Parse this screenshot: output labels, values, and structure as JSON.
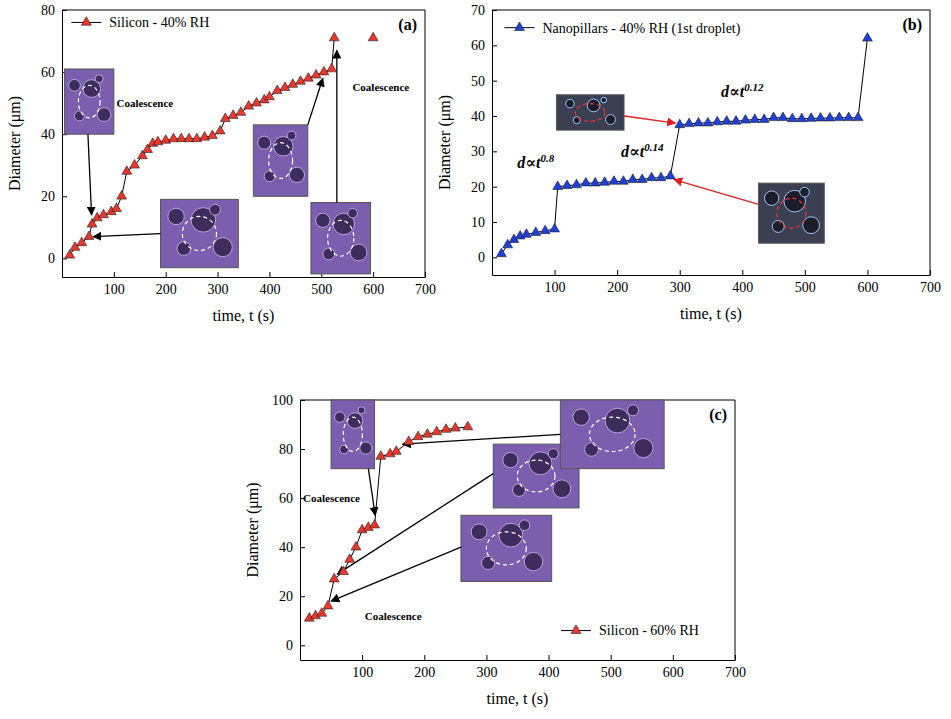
{
  "chart_data": [
    {
      "type": "line",
      "panel_label": "(a)",
      "x_label": "time, t (s)",
      "y_label": "Diameter (μm)",
      "x": [
        15,
        25,
        38,
        52,
        58,
        68,
        80,
        95,
        105,
        115,
        125,
        140,
        155,
        165,
        175,
        185,
        200,
        215,
        230,
        245,
        260,
        275,
        290,
        305,
        315,
        330,
        345,
        360,
        375,
        390,
        400,
        415,
        430,
        445,
        460,
        475,
        490,
        505,
        520,
        525,
        560,
        600
      ],
      "series": [
        {
          "name": "Silicon - 40% RH",
          "color": "#e8372c",
          "marker": "triangle",
          "values": [
            1,
            3.5,
            5,
            7,
            11,
            13,
            14,
            15,
            16,
            20,
            28,
            30,
            33,
            35,
            37,
            37.5,
            38,
            38.5,
            38.5,
            38.5,
            38.5,
            39,
            39.5,
            41,
            45,
            46,
            47,
            49,
            50,
            51,
            52,
            54,
            55,
            56,
            57,
            58,
            59,
            60,
            61,
            71,
            null,
            71
          ]
        }
      ],
      "xlim": [
        0,
        700
      ],
      "xticks": [
        100,
        200,
        300,
        400,
        500,
        600,
        700
      ],
      "ylim": [
        -6,
        80
      ],
      "yticks": [
        0,
        20,
        40,
        60,
        80
      ],
      "legend": "upper left",
      "annotations": [
        {
          "text": "Coalescence"
        },
        {
          "text": "Coalescence"
        }
      ]
    },
    {
      "type": "line",
      "panel_label": "(b)",
      "x_label": "time, t (s)",
      "y_label": "Diameter (μm)",
      "x": [
        15,
        25,
        35,
        45,
        55,
        70,
        85,
        100,
        105,
        120,
        135,
        150,
        165,
        180,
        195,
        210,
        225,
        240,
        255,
        270,
        285,
        300,
        315,
        330,
        345,
        360,
        375,
        390,
        405,
        420,
        435,
        450,
        465,
        480,
        495,
        510,
        525,
        540,
        555,
        570,
        585,
        600
      ],
      "series": [
        {
          "name": "Nanopillars - 40% RH (1st droplet)",
          "color": "#1e3fd8",
          "marker": "triangle",
          "values": [
            1,
            3.5,
            5,
            6,
            6.5,
            7,
            7.5,
            8,
            20,
            20.3,
            20.5,
            21,
            21,
            21.2,
            21.5,
            21.5,
            22,
            22,
            22.5,
            22.5,
            23,
            37.5,
            37.8,
            38,
            38,
            38.3,
            38.5,
            38.5,
            38.8,
            39,
            39,
            39.5,
            39.5,
            39.2,
            39.2,
            39.3,
            39.4,
            39.4,
            39.5,
            39.5,
            39.5,
            62
          ]
        }
      ],
      "xlim": [
        0,
        700
      ],
      "xticks": [
        100,
        200,
        300,
        400,
        500,
        600,
        700
      ],
      "ylim": [
        -5,
        70
      ],
      "yticks": [
        0,
        10,
        20,
        30,
        40,
        50,
        60,
        70
      ],
      "legend": "upper left",
      "annotations": [
        {
          "text": "d∝t",
          "superscript": "0.8"
        },
        {
          "text": "d∝t",
          "superscript": "0.14"
        },
        {
          "text": "d∝t",
          "superscript": "0.12"
        }
      ]
    },
    {
      "type": "line",
      "panel_label": "(c)",
      "x_label": "time, t (s)",
      "y_label": "Diameter (μm)",
      "x": [
        15,
        25,
        35,
        45,
        55,
        70,
        80,
        90,
        100,
        110,
        120,
        130,
        145,
        155,
        175,
        190,
        205,
        220,
        235,
        250,
        270
      ],
      "series": [
        {
          "name": "Silicon - 60% RH",
          "color": "#e8372c",
          "marker": "triangle",
          "values": [
            11,
            12,
            13,
            16,
            27,
            30,
            35,
            40,
            47,
            48,
            49,
            77,
            78,
            79,
            83,
            85,
            86,
            87,
            88,
            88.5,
            89
          ]
        }
      ],
      "xlim": [
        0,
        700
      ],
      "xticks": [
        100,
        200,
        300,
        400,
        500,
        600,
        700
      ],
      "ylim": [
        -6,
        100
      ],
      "yticks": [
        0,
        20,
        40,
        60,
        80,
        100
      ],
      "legend": "lower right",
      "annotations": [
        {
          "text": "Coalescence"
        },
        {
          "text": "Coalescence"
        }
      ]
    }
  ]
}
